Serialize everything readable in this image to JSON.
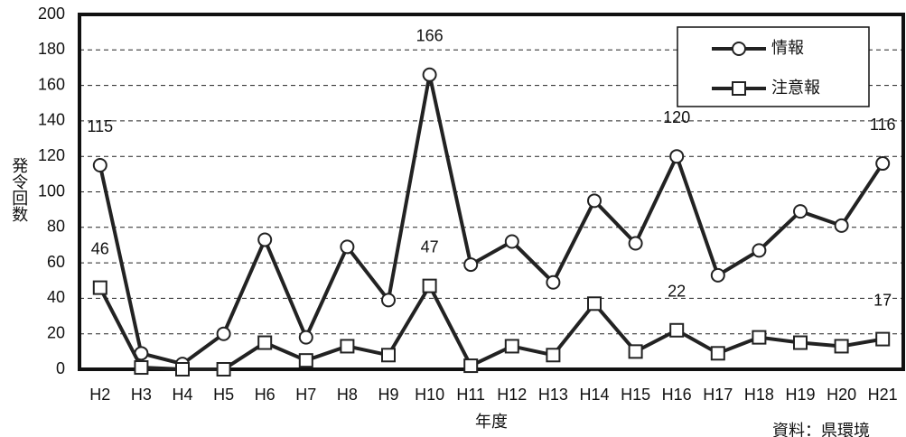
{
  "chart_data": {
    "type": "line",
    "y_label": "発令回数",
    "x_label": "年度",
    "source": "資料：県環境",
    "categories": [
      "H2",
      "H3",
      "H4",
      "H5",
      "H6",
      "H7",
      "H8",
      "H9",
      "H10",
      "H11",
      "H12",
      "H13",
      "H14",
      "H15",
      "H16",
      "H17",
      "H18",
      "H19",
      "H20",
      "H21"
    ],
    "series": [
      {
        "name": "情報",
        "marker": "circle",
        "color": "#222222",
        "values": [
          115,
          9,
          3,
          20,
          73,
          18,
          69,
          39,
          166,
          59,
          72,
          49,
          95,
          71,
          120,
          53,
          67,
          89,
          81,
          116
        ],
        "value_labels": [
          115,
          null,
          null,
          null,
          null,
          null,
          null,
          null,
          166,
          null,
          null,
          null,
          null,
          null,
          120,
          null,
          null,
          null,
          null,
          116
        ]
      },
      {
        "name": "注意報",
        "marker": "square",
        "color": "#222222",
        "values": [
          46,
          1,
          0,
          0,
          15,
          5,
          13,
          8,
          47,
          2,
          13,
          8,
          37,
          10,
          22,
          9,
          18,
          15,
          13,
          17
        ],
        "value_labels": [
          46,
          null,
          null,
          null,
          null,
          null,
          null,
          null,
          47,
          null,
          null,
          null,
          null,
          null,
          22,
          null,
          null,
          null,
          null,
          17
        ]
      }
    ],
    "ylim": [
      0,
      200
    ],
    "yticks": [
      0,
      20,
      40,
      60,
      80,
      100,
      120,
      140,
      160,
      180,
      200
    ],
    "grid": true,
    "legend": "top-right"
  }
}
